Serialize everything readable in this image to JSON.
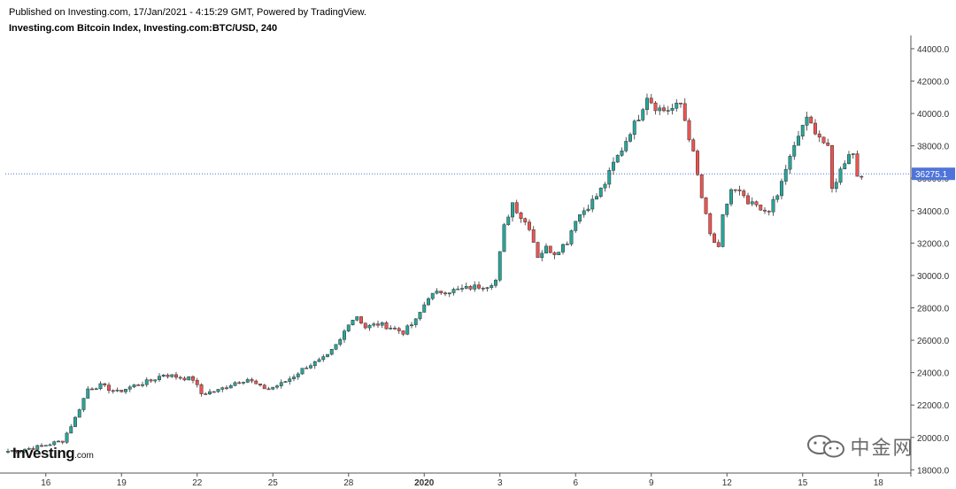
{
  "header": {
    "published": "Published on Investing.com, 17/Jan/2021 - 4:15:29 GMT, Powered by TradingView.",
    "symbol": "Investing.com Bitcoin Index, Investing.com:BTC/USD, 240"
  },
  "logo": {
    "main": "Investing",
    "suffix": ".com"
  },
  "watermark": {
    "text": "中金网"
  },
  "colors": {
    "up": "#26a69a",
    "down": "#ef5350",
    "axis": "#555555",
    "priceLine": "#4f74d9",
    "priceLabelBg": "#4f74d9"
  },
  "chart_data": {
    "type": "candlestick",
    "interval": "240",
    "ylim": [
      17800,
      44600
    ],
    "yticks": [
      18000,
      20000,
      22000,
      24000,
      26000,
      28000,
      30000,
      32000,
      34000,
      36000,
      38000,
      40000,
      42000,
      44000
    ],
    "ytick_labels": [
      "18000.0",
      "20000.0",
      "22000.0",
      "24000.0",
      "26000.0",
      "28000.0",
      "30000.0",
      "32000.0",
      "34000.0",
      "36000.0",
      "38000.0",
      "40000.0",
      "42000.0",
      "44000.0"
    ],
    "xticks": [
      {
        "label": "16",
        "bar": 9
      },
      {
        "label": "19",
        "bar": 27
      },
      {
        "label": "22",
        "bar": 45
      },
      {
        "label": "25",
        "bar": 63
      },
      {
        "label": "28",
        "bar": 81
      },
      {
        "label": "2020",
        "bar": 99
      },
      {
        "label": "3",
        "bar": 117
      },
      {
        "label": "6",
        "bar": 135
      },
      {
        "label": "9",
        "bar": 153
      },
      {
        "label": "12",
        "bar": 171
      },
      {
        "label": "15",
        "bar": 189
      },
      {
        "label": "18",
        "bar": 207
      }
    ],
    "last_price": 36275.1,
    "last_price_label": "36275.1",
    "anchors": [
      [
        0,
        19150
      ],
      [
        6,
        19350
      ],
      [
        10,
        19600
      ],
      [
        13,
        19800
      ],
      [
        16,
        21200
      ],
      [
        19,
        23000
      ],
      [
        22,
        23200
      ],
      [
        26,
        22800
      ],
      [
        30,
        23200
      ],
      [
        34,
        23500
      ],
      [
        37,
        23900
      ],
      [
        41,
        23700
      ],
      [
        44,
        23600
      ],
      [
        46,
        22700
      ],
      [
        50,
        22900
      ],
      [
        54,
        23400
      ],
      [
        57,
        23600
      ],
      [
        60,
        23100
      ],
      [
        62,
        23000
      ],
      [
        65,
        23300
      ],
      [
        68,
        23800
      ],
      [
        71,
        24400
      ],
      [
        74,
        24700
      ],
      [
        76,
        25000
      ],
      [
        79,
        26000
      ],
      [
        81,
        27100
      ],
      [
        83,
        27500
      ],
      [
        85,
        26800
      ],
      [
        88,
        27000
      ],
      [
        91,
        26800
      ],
      [
        94,
        26500
      ],
      [
        97,
        27200
      ],
      [
        100,
        28700
      ],
      [
        103,
        29000
      ],
      [
        107,
        29100
      ],
      [
        111,
        29300
      ],
      [
        114,
        29400
      ],
      [
        116,
        29700
      ],
      [
        118,
        33000
      ],
      [
        120,
        34500
      ],
      [
        122,
        33600
      ],
      [
        124,
        33000
      ],
      [
        126,
        31200
      ],
      [
        128,
        31700
      ],
      [
        130,
        31400
      ],
      [
        133,
        32100
      ],
      [
        135,
        33500
      ],
      [
        138,
        34300
      ],
      [
        140,
        34900
      ],
      [
        142,
        35700
      ],
      [
        144,
        36900
      ],
      [
        146,
        37800
      ],
      [
        148,
        38900
      ],
      [
        150,
        39800
      ],
      [
        152,
        41100
      ],
      [
        154,
        40400
      ],
      [
        156,
        40200
      ],
      [
        158,
        40300
      ],
      [
        160,
        40600
      ],
      [
        161,
        39600
      ],
      [
        163,
        37500
      ],
      [
        165,
        34800
      ],
      [
        167,
        32500
      ],
      [
        169,
        31600
      ],
      [
        170,
        33600
      ],
      [
        172,
        35300
      ],
      [
        174,
        35100
      ],
      [
        176,
        34400
      ],
      [
        178,
        34300
      ],
      [
        179,
        33900
      ],
      [
        181,
        34100
      ],
      [
        183,
        34900
      ],
      [
        185,
        36600
      ],
      [
        187,
        37900
      ],
      [
        189,
        39300
      ],
      [
        190,
        39600
      ],
      [
        191,
        39300
      ],
      [
        193,
        38600
      ],
      [
        195,
        37800
      ],
      [
        196,
        35300
      ],
      [
        198,
        36500
      ],
      [
        200,
        37600
      ],
      [
        201,
        37500
      ],
      [
        202,
        36200
      ],
      [
        203,
        36300
      ]
    ]
  }
}
